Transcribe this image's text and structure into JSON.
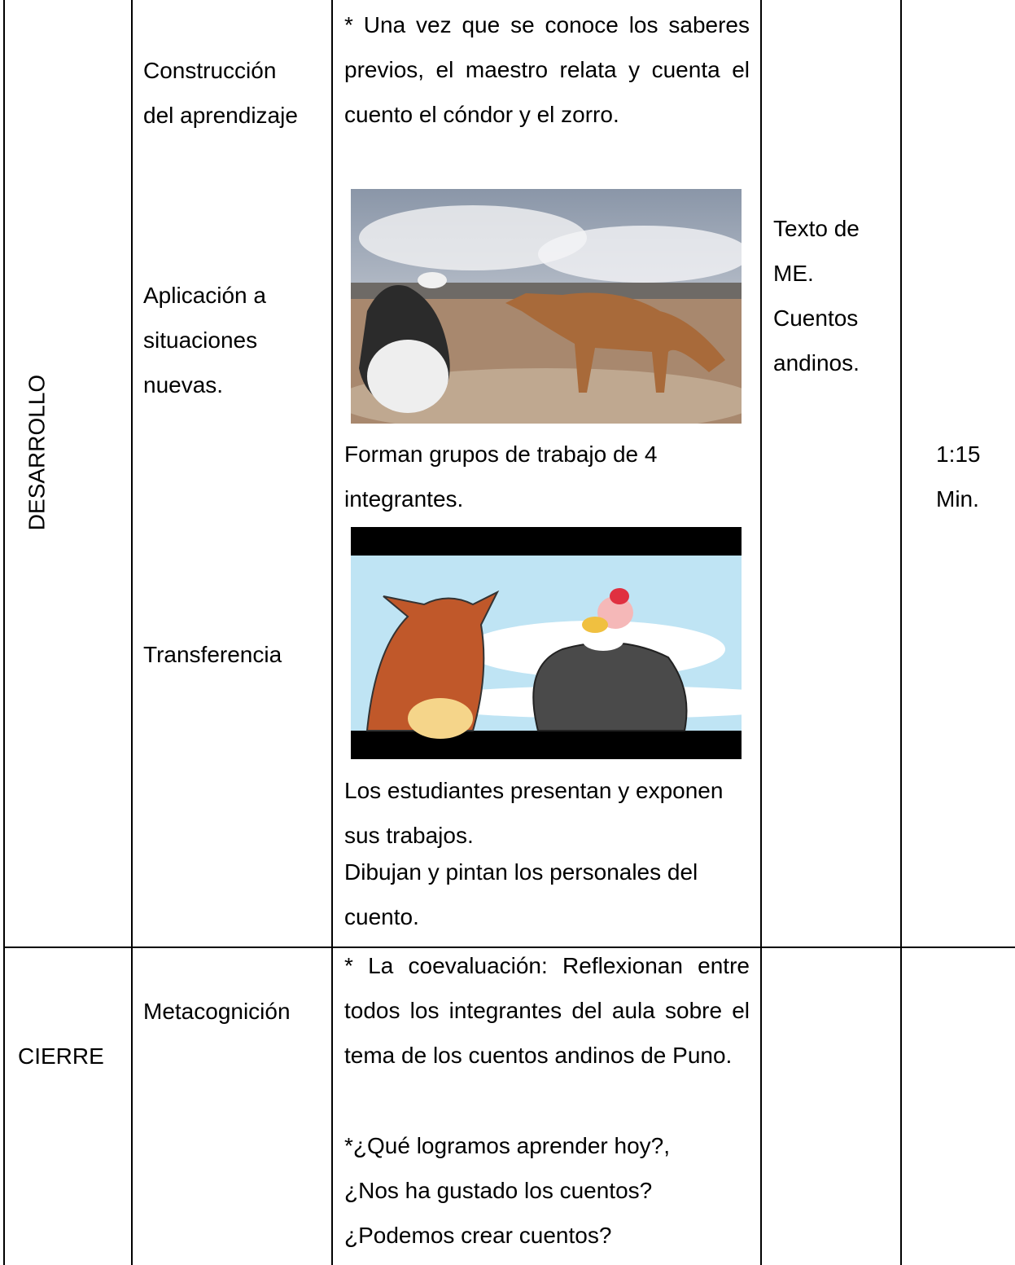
{
  "table": {
    "rows": [
      {
        "phase": "DESARROLLO",
        "steps": [
          "Construcción del aprendizaje",
          "Aplicación a situaciones nuevas.",
          "Transferencia"
        ],
        "activities": [
          "* Una vez que se conoce los saberes previos, el maestro relata y cuenta el cuento el cóndor y el zorro.",
          "Forman grupos de trabajo de 4 integrantes.",
          "Los estudiantes presentan y exponen sus trabajos.",
          "Dibujan y pintan los personales del cuento."
        ],
        "resources": "Texto de ME. Cuentos andinos.",
        "time": "1:15 Min."
      },
      {
        "phase": "CIERRE",
        "steps": [
          "Metacognición"
        ],
        "activities": [
          "* La coevaluación: Reflexionan entre todos los integrantes del aula sobre el tema de los cuentos andinos de Puno.",
          "*¿Qué logramos aprender hoy?,",
          "¿Nos ha gustado los cuentos?",
          "¿Podemos crear cuentos?"
        ]
      }
    ]
  }
}
